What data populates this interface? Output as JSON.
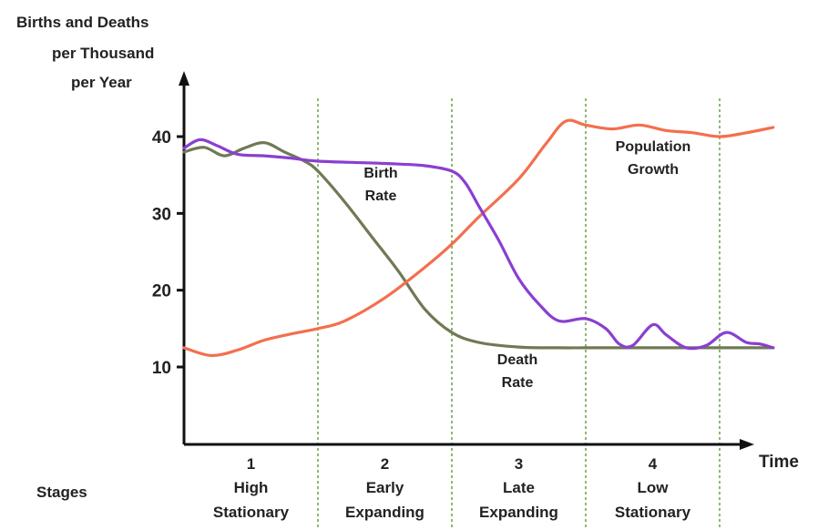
{
  "chart_data": {
    "type": "line",
    "title": "",
    "ylabel_lines": [
      "Births and Deaths",
      "per Thousand",
      "per Year"
    ],
    "xlabel": "Time",
    "ylim": [
      0,
      47
    ],
    "xlim": [
      0,
      4.4
    ],
    "yticks": [
      10,
      20,
      30,
      40
    ],
    "grid": false,
    "stage_heading": "Stages",
    "stages": [
      {
        "number": "1",
        "name1": "High",
        "name2": "Stationary"
      },
      {
        "number": "2",
        "name1": "Early",
        "name2": "Expanding"
      },
      {
        "number": "3",
        "name1": "Late",
        "name2": "Expanding"
      },
      {
        "number": "4",
        "name1": "Low",
        "name2": "Stationary"
      }
    ],
    "stage_boundaries": [
      1,
      2,
      3,
      4
    ],
    "series": [
      {
        "name": "Birth Rate",
        "label_lines": [
          "Birth",
          "Rate"
        ],
        "color": "#8a3fd0",
        "x": [
          0,
          0.12,
          0.25,
          0.4,
          0.6,
          0.8,
          1.0,
          1.5,
          1.8,
          2.0,
          2.1,
          2.2,
          2.35,
          2.5,
          2.65,
          2.8,
          3.0,
          3.15,
          3.25,
          3.35,
          3.5,
          3.6,
          3.75,
          3.9,
          4.05,
          4.2,
          4.3,
          4.4
        ],
        "y": [
          38.5,
          39.6,
          38.8,
          37.7,
          37.5,
          37.2,
          36.8,
          36.5,
          36.2,
          35.5,
          34.0,
          31.0,
          26.5,
          21.5,
          18.2,
          16.0,
          16.3,
          15.0,
          13.0,
          12.8,
          15.5,
          14.2,
          12.5,
          12.8,
          14.5,
          13.2,
          13.0,
          12.5
        ]
      },
      {
        "name": "Death Rate",
        "label_lines": [
          "Death",
          "Rate"
        ],
        "color": "#6f7a55",
        "x": [
          0,
          0.15,
          0.3,
          0.45,
          0.6,
          0.75,
          0.9,
          1.0,
          1.2,
          1.4,
          1.6,
          1.8,
          2.0,
          2.2,
          2.5,
          2.8,
          3.0,
          3.5,
          4.0,
          4.4
        ],
        "y": [
          38.0,
          38.6,
          37.5,
          38.5,
          39.2,
          38.0,
          36.8,
          35.5,
          31.5,
          27.0,
          22.5,
          17.5,
          14.5,
          13.2,
          12.6,
          12.5,
          12.5,
          12.5,
          12.5,
          12.5
        ]
      },
      {
        "name": "Population Growth",
        "label_lines": [
          "Population",
          "Growth"
        ],
        "color": "#f36f4e",
        "x": [
          0,
          0.2,
          0.4,
          0.6,
          0.8,
          1.0,
          1.2,
          1.5,
          1.8,
          2.0,
          2.2,
          2.5,
          2.7,
          2.85,
          3.0,
          3.2,
          3.4,
          3.6,
          3.8,
          4.0,
          4.2,
          4.4
        ],
        "y": [
          12.5,
          11.5,
          12.2,
          13.5,
          14.3,
          15.0,
          16.0,
          19.0,
          23.0,
          26.0,
          29.5,
          34.5,
          39.0,
          42.0,
          41.5,
          41.0,
          41.5,
          40.8,
          40.5,
          40.0,
          40.5,
          41.2
        ]
      }
    ]
  }
}
